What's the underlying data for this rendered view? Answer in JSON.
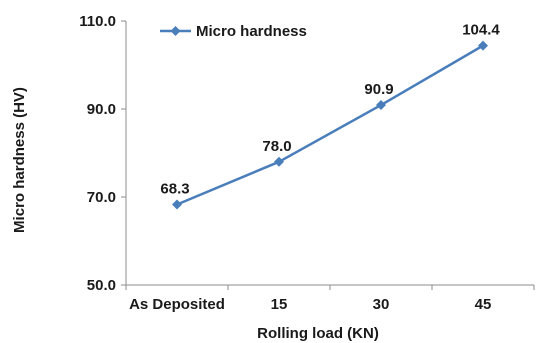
{
  "chart_data": {
    "type": "line",
    "categories": [
      "As Deposited",
      "15",
      "30",
      "45"
    ],
    "series": [
      {
        "name": "Micro hardness",
        "values": [
          68.3,
          78.0,
          90.9,
          104.4
        ],
        "color": "#4a7ebb",
        "marker": "diamond"
      }
    ],
    "data_labels": [
      "68.3",
      "78.0",
      "90.9",
      "104.4"
    ],
    "xlabel": "Rolling load (KN)",
    "ylabel": "Micro hardness (HV)",
    "ylim": [
      50.0,
      110.0
    ],
    "yticks": [
      50.0,
      70.0,
      90.0,
      110.0
    ],
    "ytick_labels": [
      "50.0",
      "70.0",
      "90.0",
      "110.0"
    ],
    "grid": false,
    "legend_position": "top-left"
  }
}
